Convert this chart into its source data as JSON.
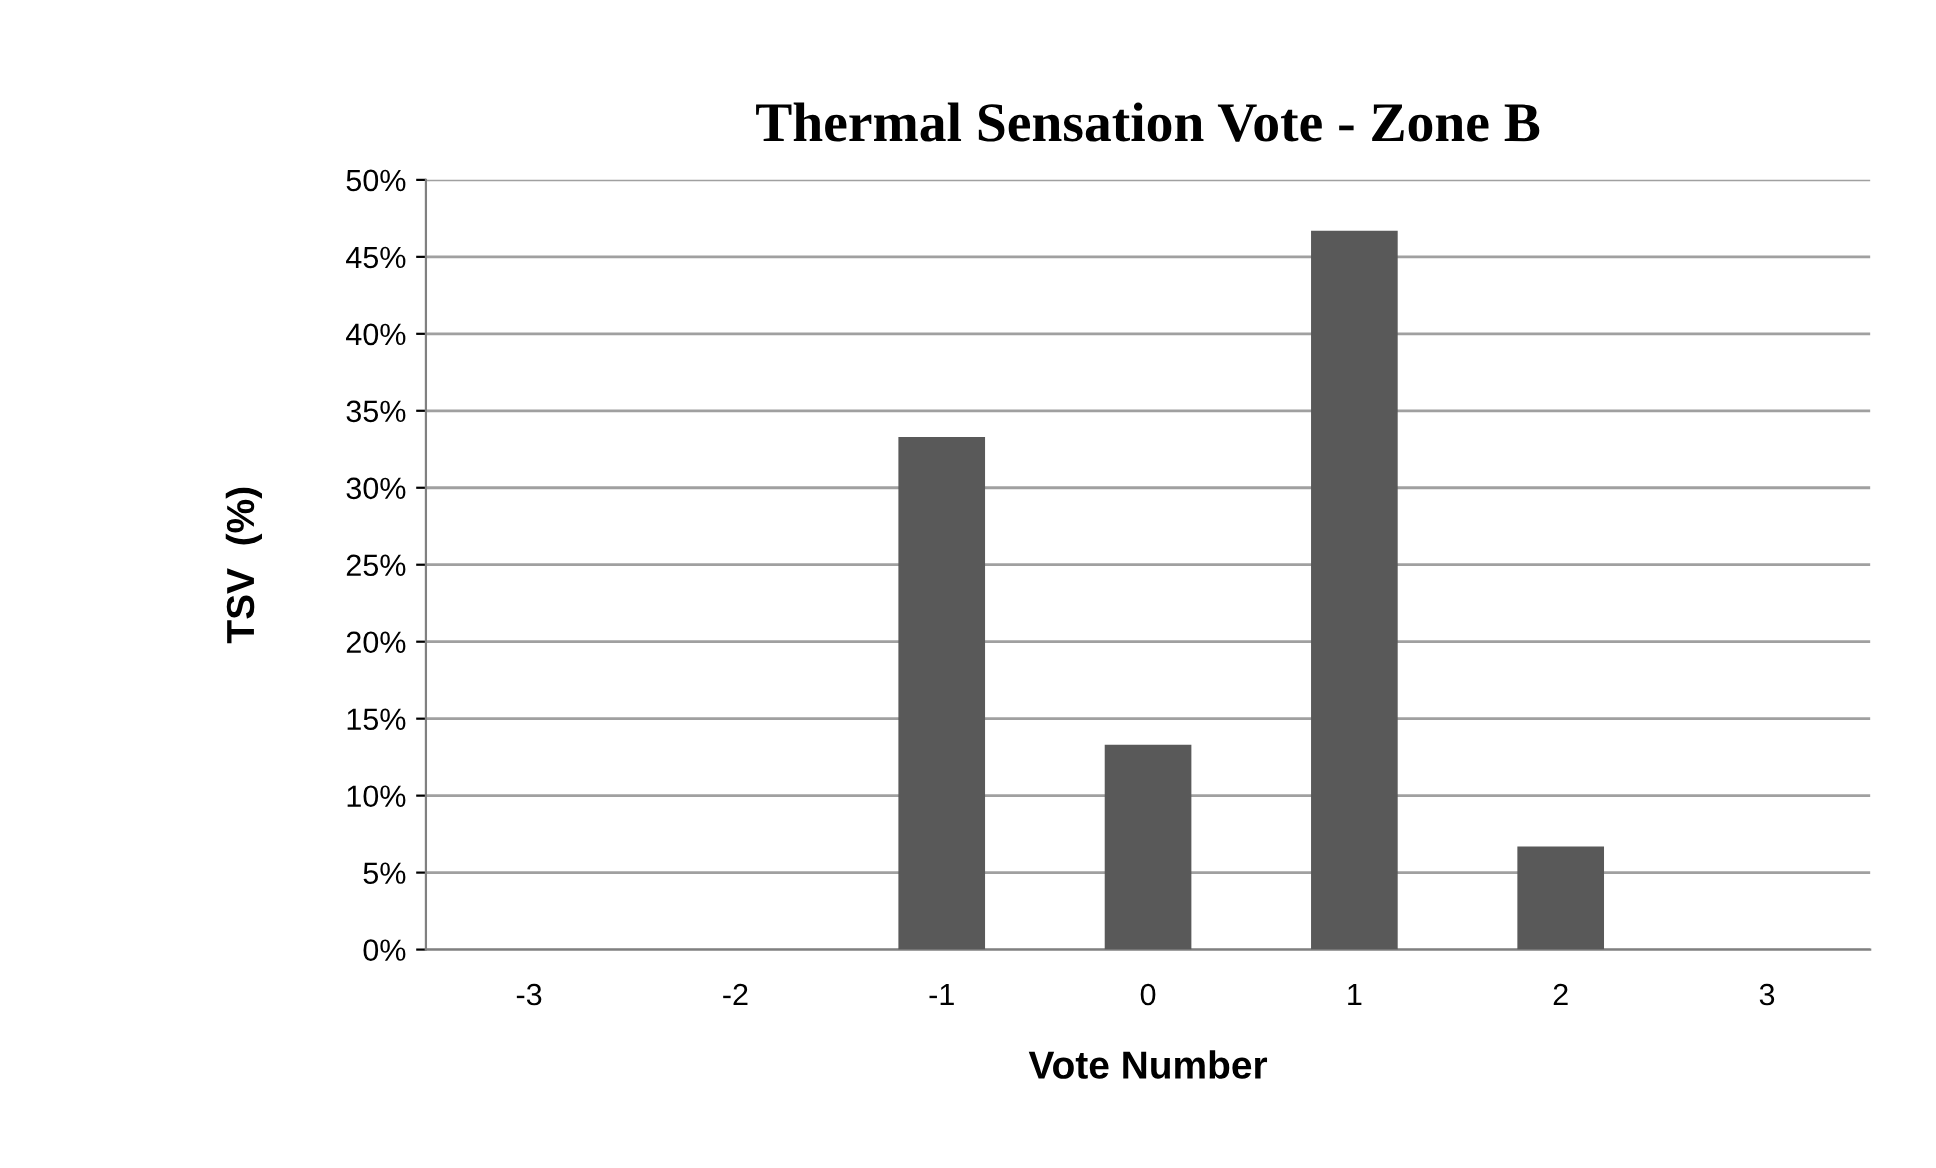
{
  "chart_data": {
    "type": "bar",
    "title": "Thermal Sensation Vote - Zone B",
    "xlabel": "Vote Number",
    "ylabel": "TSV  (%)",
    "categories": [
      "-3",
      "-2",
      "-1",
      "0",
      "1",
      "2",
      "3"
    ],
    "values": [
      0,
      0,
      33.3,
      13.3,
      46.7,
      6.7,
      0
    ],
    "color": "#595959",
    "ylim": [
      0,
      50
    ],
    "yticks": [
      {
        "value": 0,
        "label": "0%"
      },
      {
        "value": 5,
        "label": "5%"
      },
      {
        "value": 10,
        "label": "10%"
      },
      {
        "value": 15,
        "label": "15%"
      },
      {
        "value": 20,
        "label": "20%"
      },
      {
        "value": 25,
        "label": "25%"
      },
      {
        "value": 30,
        "label": "30%"
      },
      {
        "value": 35,
        "label": "35%"
      },
      {
        "value": 40,
        "label": "40%"
      },
      {
        "value": 45,
        "label": "45%"
      },
      {
        "value": 50,
        "label": "50%"
      }
    ],
    "grid": "y"
  }
}
